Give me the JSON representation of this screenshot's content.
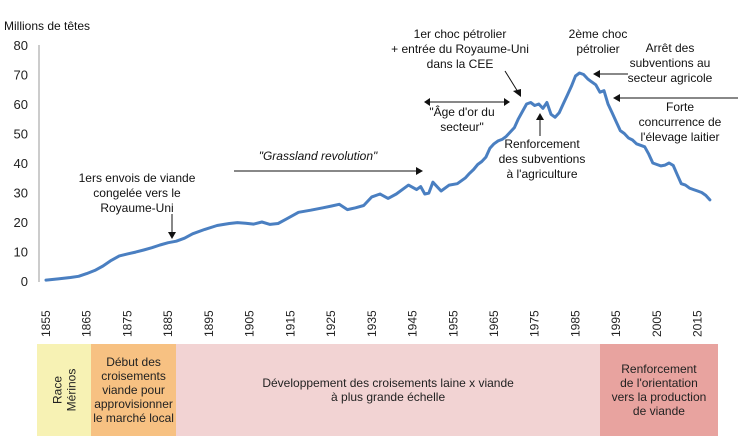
{
  "chart_data": {
    "type": "line",
    "ylabel": "Millions de têtes",
    "ylim": [
      0,
      80
    ],
    "yticks": [
      0,
      10,
      20,
      30,
      40,
      50,
      60,
      70,
      80
    ],
    "xlim": [
      1855,
      2020
    ],
    "xticks": [
      "1855",
      "1865",
      "1875",
      "1885",
      "1895",
      "1905",
      "1915",
      "1925",
      "1935",
      "1945",
      "1955",
      "1965",
      "1975",
      "1985",
      "1995",
      "2005",
      "2015"
    ],
    "grid": false,
    "color": "#4a7fc1",
    "series": [
      {
        "x": [
          1855,
          1858,
          1861,
          1863,
          1865,
          1867,
          1869,
          1871,
          1873,
          1875,
          1877,
          1879,
          1881,
          1883,
          1885,
          1887,
          1889,
          1891,
          1894,
          1897,
          1900,
          1902,
          1904,
          1906,
          1908,
          1910,
          1912,
          1914,
          1917,
          1920,
          1923,
          1925,
          1927,
          1929,
          1931,
          1933,
          1935,
          1937,
          1939,
          1941,
          1943,
          1944,
          1946,
          1947,
          1948,
          1949,
          1950,
          1952,
          1954,
          1956,
          1958,
          1959,
          1960,
          1961,
          1962,
          1963,
          1964,
          1965,
          1966,
          1967,
          1968,
          1969,
          1970,
          1971,
          1972,
          1973,
          1974,
          1975,
          1976,
          1977,
          1978,
          1979,
          1980,
          1981,
          1982,
          1983,
          1984,
          1985,
          1986,
          1987,
          1988,
          1989,
          1990,
          1991,
          1992,
          1993,
          1994,
          1995,
          1996,
          1997,
          1998,
          1999,
          2000,
          2001,
          2002,
          2003,
          2004,
          2005,
          2006,
          2007,
          2008,
          2009,
          2010,
          2011,
          2012,
          2013,
          2014,
          2015,
          2016,
          2017,
          2018
        ],
        "y": [
          0.3,
          0.7,
          1.2,
          1.6,
          2.5,
          3.6,
          5.1,
          7,
          8.5,
          9.2,
          9.8,
          10.5,
          11.3,
          12.2,
          13,
          13.5,
          14.5,
          16,
          17.5,
          18.8,
          19.5,
          19.8,
          19.6,
          19.3,
          20,
          19.2,
          19.5,
          21,
          23.3,
          24,
          24.8,
          25.4,
          26,
          24.2,
          24.8,
          25.6,
          28.5,
          29.5,
          28,
          29.5,
          31.5,
          32.5,
          31,
          32,
          29.5,
          29.8,
          33.5,
          30.5,
          32.5,
          33,
          35,
          36.5,
          37.8,
          39.5,
          40.5,
          42,
          45,
          46.5,
          47.5,
          48,
          49,
          50.5,
          52,
          55,
          57.5,
          60,
          60.5,
          59.5,
          60,
          58.5,
          60.5,
          56.5,
          55.5,
          57,
          60,
          63,
          66,
          69.5,
          70.5,
          70,
          68.5,
          67.5,
          66.5,
          64,
          64.5,
          60,
          57,
          54,
          51,
          50,
          48.5,
          47.8,
          46.5,
          46,
          45.5,
          43,
          40,
          39.5,
          39,
          39.3,
          40,
          39.2,
          36,
          33,
          32.5,
          31.5,
          31,
          30.5,
          30,
          29,
          27.5
        ]
      }
    ],
    "annotations": [
      {
        "id": "refrigerated",
        "lines": [
          "1ers envois de viande",
          "congelée vers le",
          "Royaume-Uni"
        ]
      },
      {
        "id": "grassland",
        "lines": [
          "\"Grassland revolution\""
        ]
      },
      {
        "id": "oil1",
        "lines": [
          "1er choc pétrolier",
          "+ entrée du Royaume-Uni",
          "dans la CEE"
        ]
      },
      {
        "id": "golden",
        "lines": [
          "\"Âge d'or du",
          "secteur\""
        ]
      },
      {
        "id": "subsidies_up",
        "lines": [
          "Renforcement",
          "des subventions",
          "à l'agriculture"
        ]
      },
      {
        "id": "oil2",
        "lines": [
          "2ème choc",
          "pétrolier"
        ]
      },
      {
        "id": "subsidies_stop",
        "lines": [
          "Arrêt des",
          "subventions au",
          "secteur agricole"
        ]
      },
      {
        "id": "dairy",
        "lines": [
          "Forte",
          "concurrence de",
          "l'élevage laitier"
        ]
      }
    ]
  },
  "timeline": {
    "bands": [
      {
        "label": "Race\nMérinos",
        "color": "#f7f2b4",
        "from": 1847,
        "to": 1866,
        "vertical": true
      },
      {
        "label": "Début des\ncroisements\nviande pour\napprovisionner\nle marché local",
        "color": "#f7c182",
        "from": 1866,
        "to": 1887,
        "vertical": false
      },
      {
        "label": "Développement des croisements laine x viande\nà plus grande échelle",
        "color": "#f2d3d3",
        "from": 1887,
        "to": 1991,
        "vertical": false
      },
      {
        "label": "Renforcement\nde l'orientation\nvers la production\nde viande",
        "color": "#e8a39f",
        "from": 1991,
        "to": 2020,
        "vertical": false
      }
    ]
  }
}
